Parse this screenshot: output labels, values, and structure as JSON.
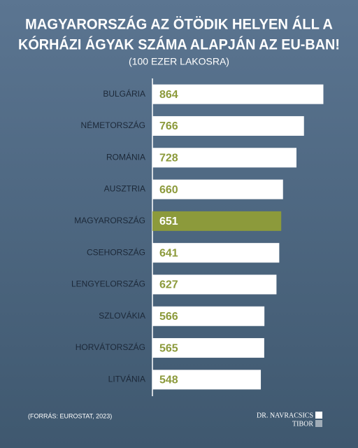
{
  "chart_data": {
    "type": "bar",
    "orientation": "horizontal",
    "title_lines": [
      "MAGYARORSZÁG AZ ÖTÖDIK HELYEN ÁLL A",
      "KÓRHÁZI ÁGYAK SZÁMA ALAPJÁN AZ EU-BAN!"
    ],
    "subtitle": "(100 EZER LAKOSRA)",
    "categories": [
      "BULGÁRIA",
      "NÉMETORSZÁG",
      "ROMÁNIA",
      "AUSZTRIA",
      "MAGYARORSZÁG",
      "CSEHORSZÁG",
      "LENGYELORSZÁG",
      "SZLOVÁKIA",
      "HORVÁTORSZÁG",
      "LITVÁNIA"
    ],
    "values": [
      864,
      766,
      728,
      660,
      651,
      641,
      627,
      566,
      565,
      548
    ],
    "colors": [
      "#ffffff",
      "#ffffff",
      "#ffffff",
      "#ffffff",
      "#8c9a3b",
      "#ffffff",
      "#ffffff",
      "#ffffff",
      "#ffffff",
      "#ffffff"
    ],
    "label_colors": [
      "#8c9a3b",
      "#8c9a3b",
      "#8c9a3b",
      "#8c9a3b",
      "#ffffff",
      "#8c9a3b",
      "#8c9a3b",
      "#8c9a3b",
      "#8c9a3b",
      "#8c9a3b"
    ],
    "xlim": [
      0,
      880
    ],
    "source": "(FORRÁS: EUROSTAT, 2023)"
  },
  "logo": {
    "line1": "DR. NAVRACSICS",
    "line2": "TIBOR"
  }
}
